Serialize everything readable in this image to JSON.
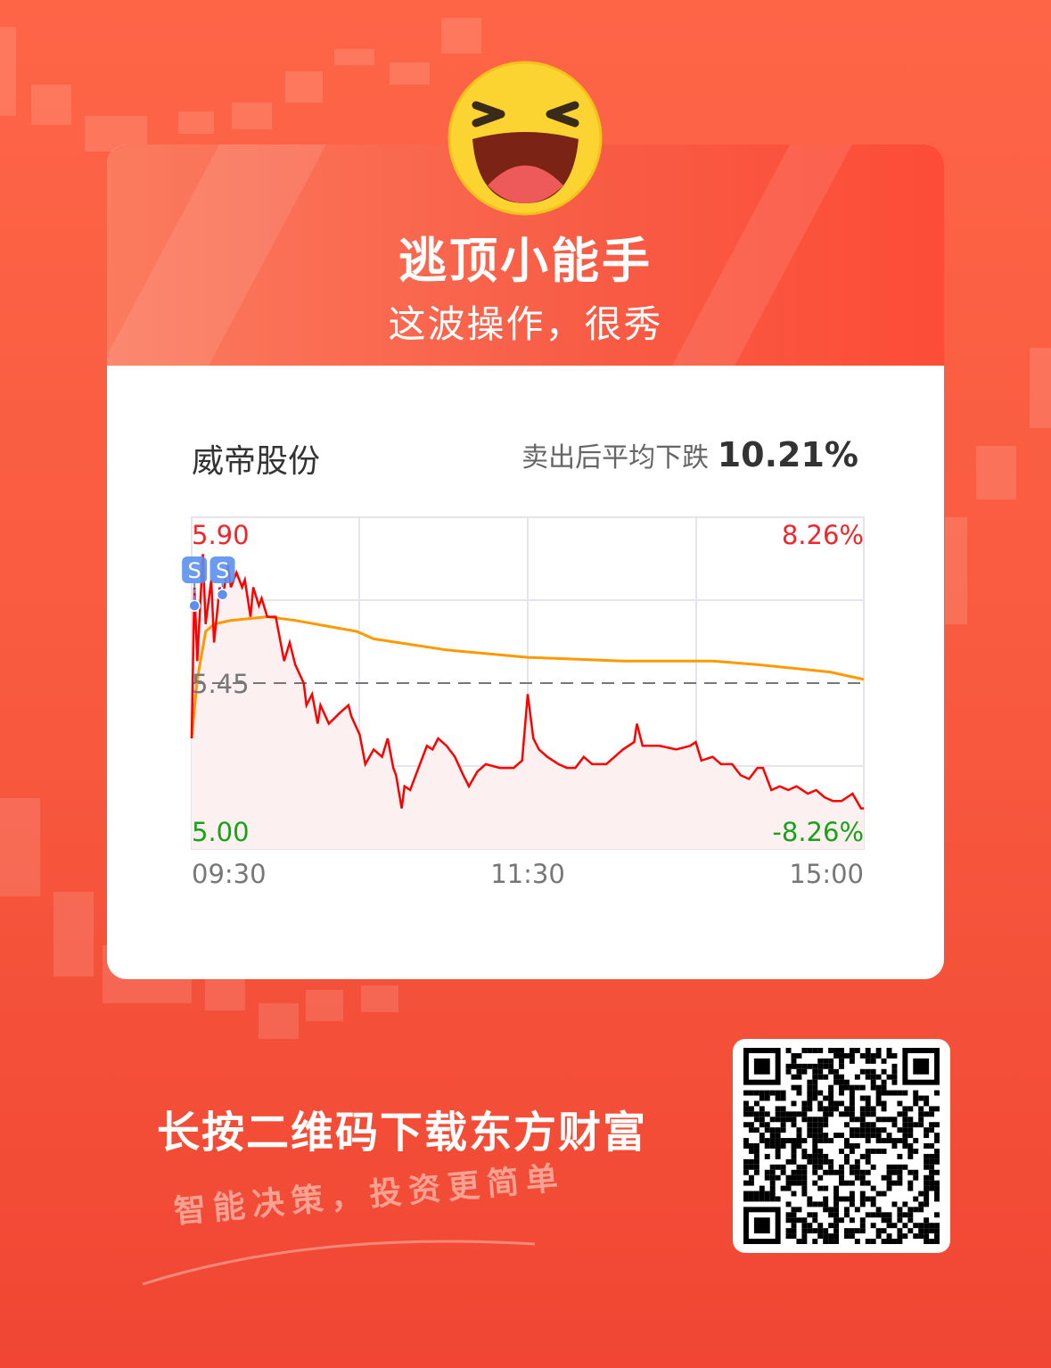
{
  "header": {
    "title": "逃顶小能手",
    "subtitle": "这波操作，很秀"
  },
  "stock": {
    "name": "威帝股份",
    "drop_label": "卖出后平均下跌",
    "drop_value": "10.21%"
  },
  "footer": {
    "cta": "长按二维码下载东方财富",
    "slogan": "智能决策，投资更简单"
  },
  "colors": {
    "price": "#ff0000",
    "avg": "#ff9900",
    "up": "#f0262b",
    "down": "#1aa11a",
    "marker": "#5b8ff0"
  },
  "chart_data": {
    "type": "line",
    "x_ticks": [
      "09:30",
      "11:30",
      "15:00"
    ],
    "x_unit": "minutes since open",
    "xlim": [
      0,
      240
    ],
    "ylim": [
      5.0,
      5.9
    ],
    "y_labels": {
      "top": "5.90",
      "mid": "5.45",
      "bottom": "5.00"
    },
    "pct_labels": {
      "top": "8.26%",
      "bottom": "-8.26%"
    },
    "reference": 5.45,
    "grid": true,
    "markers": [
      {
        "label": "S",
        "x": 1,
        "y": 5.66
      },
      {
        "label": "S",
        "x": 11,
        "y": 5.69
      }
    ],
    "series": [
      {
        "key": "price",
        "x": [
          0,
          1,
          2,
          4,
          5,
          7,
          8,
          10,
          11,
          13,
          14,
          16,
          18,
          19,
          21,
          22,
          24,
          25,
          27,
          30,
          33,
          35,
          37,
          40,
          41,
          43,
          45,
          46,
          49,
          53,
          56,
          57,
          60,
          62,
          65,
          68,
          70,
          72,
          73,
          75,
          76,
          78,
          81,
          84,
          86,
          88,
          91,
          94,
          97,
          99,
          102,
          105,
          110,
          115,
          118,
          120,
          122,
          124,
          127,
          131,
          134,
          137,
          140,
          143,
          148,
          151,
          154,
          158,
          159,
          161,
          167,
          173,
          178,
          180,
          182,
          186,
          189,
          193,
          196,
          199,
          202,
          204,
          207,
          210,
          213,
          216,
          220,
          223,
          226,
          229,
          232,
          234,
          236,
          239,
          240
        ],
        "y": [
          5.3,
          5.71,
          5.51,
          5.8,
          5.61,
          5.73,
          5.56,
          5.71,
          5.68,
          5.77,
          5.71,
          5.75,
          5.71,
          5.73,
          5.63,
          5.71,
          5.66,
          5.68,
          5.63,
          5.63,
          5.51,
          5.56,
          5.5,
          5.45,
          5.39,
          5.42,
          5.34,
          5.39,
          5.34,
          5.37,
          5.39,
          5.36,
          5.31,
          5.23,
          5.27,
          5.25,
          5.3,
          5.22,
          5.2,
          5.11,
          5.17,
          5.16,
          5.22,
          5.28,
          5.27,
          5.3,
          5.28,
          5.25,
          5.2,
          5.17,
          5.21,
          5.23,
          5.22,
          5.22,
          5.24,
          5.42,
          5.3,
          5.27,
          5.25,
          5.23,
          5.22,
          5.22,
          5.25,
          5.23,
          5.23,
          5.25,
          5.27,
          5.29,
          5.34,
          5.28,
          5.28,
          5.27,
          5.28,
          5.29,
          5.24,
          5.25,
          5.23,
          5.23,
          5.2,
          5.19,
          5.22,
          5.22,
          5.16,
          5.17,
          5.16,
          5.17,
          5.15,
          5.16,
          5.14,
          5.13,
          5.13,
          5.14,
          5.15,
          5.11,
          5.11
        ]
      },
      {
        "key": "average",
        "x": [
          0,
          2,
          5,
          8,
          14,
          27,
          37,
          59,
          65,
          91,
          120,
          154,
          186,
          202,
          228,
          240
        ],
        "y": [
          5.3,
          5.46,
          5.59,
          5.61,
          5.62,
          5.63,
          5.62,
          5.59,
          5.57,
          5.54,
          5.52,
          5.51,
          5.51,
          5.5,
          5.48,
          5.46
        ]
      }
    ]
  }
}
